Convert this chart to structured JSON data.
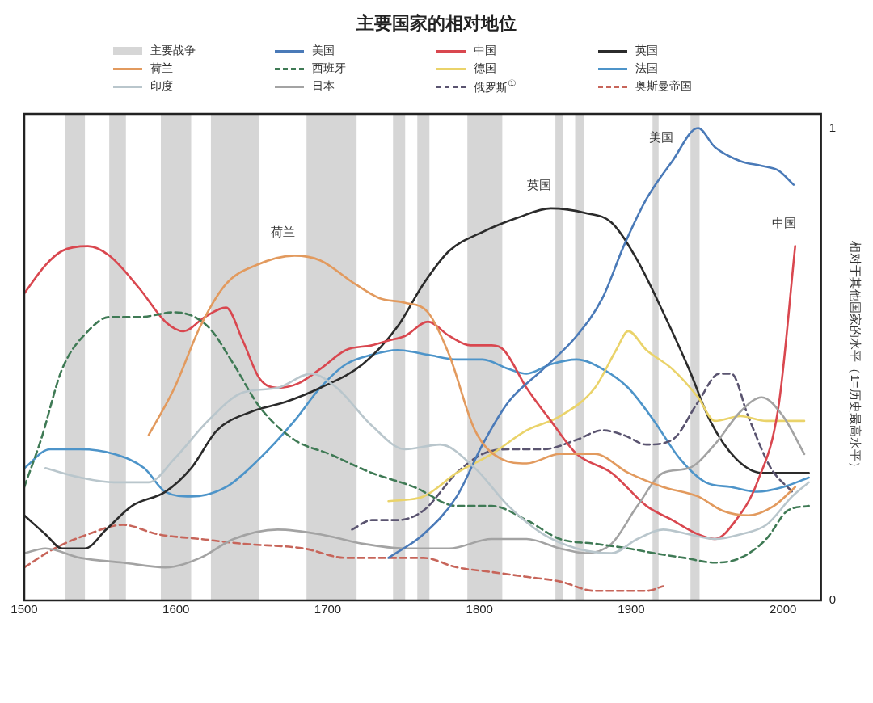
{
  "chart_data": {
    "type": "line",
    "title": "主要国家的相对地位",
    "ylabel": "相对于其他国家的水平（1=历史最高水平）",
    "xlim": [
      1500,
      2025
    ],
    "xticks": [
      1500,
      1600,
      1700,
      1800,
      1900,
      2000
    ],
    "ylim": [
      0,
      1.03
    ],
    "yticks": [
      0,
      1
    ],
    "grid": false,
    "legend": "top",
    "marker": "none",
    "bands": [
      {
        "axis": "x",
        "from": 1527,
        "to": 1540,
        "label": "主要战争",
        "color": "#d6d6d6"
      },
      {
        "axis": "x",
        "from": 1556,
        "to": 1567,
        "color": "#d6d6d6"
      },
      {
        "axis": "x",
        "from": 1590,
        "to": 1610,
        "color": "#d6d6d6"
      },
      {
        "axis": "x",
        "from": 1623,
        "to": 1655,
        "color": "#d6d6d6"
      },
      {
        "axis": "x",
        "from": 1686,
        "to": 1719,
        "color": "#d6d6d6"
      },
      {
        "axis": "x",
        "from": 1743,
        "to": 1751,
        "color": "#d6d6d6"
      },
      {
        "axis": "x",
        "from": 1759,
        "to": 1767,
        "color": "#d6d6d6"
      },
      {
        "axis": "x",
        "from": 1792,
        "to": 1815,
        "color": "#d6d6d6"
      },
      {
        "axis": "x",
        "from": 1850,
        "to": 1855,
        "color": "#d6d6d6"
      },
      {
        "axis": "x",
        "from": 1863,
        "to": 1869,
        "color": "#d6d6d6"
      },
      {
        "axis": "x",
        "from": 1914,
        "to": 1918,
        "color": "#d6d6d6"
      },
      {
        "axis": "x",
        "from": 1939,
        "to": 1945,
        "color": "#d6d6d6"
      }
    ],
    "annotations": [
      {
        "text": "荷兰",
        "x": 1678,
        "y": 0.73
      },
      {
        "text": "英国",
        "x": 1847,
        "y": 0.83
      },
      {
        "text": "美国",
        "x": 1927,
        "y": 0.93
      },
      {
        "text": "中国",
        "x": 2008,
        "y": 0.75
      }
    ],
    "series": [
      {
        "name": "荷兰",
        "color": "#e29a5e",
        "line_style": "solid",
        "x": [
          1582,
          1599,
          1616,
          1633,
          1653,
          1678,
          1695,
          1718,
          1734,
          1751,
          1766,
          1780,
          1797,
          1814,
          1831,
          1853,
          1876,
          1898,
          1921,
          1944,
          1960,
          1977,
          1994,
          2008
        ],
        "values": [
          0.35,
          0.45,
          0.58,
          0.67,
          0.71,
          0.73,
          0.72,
          0.67,
          0.64,
          0.63,
          0.61,
          0.52,
          0.36,
          0.3,
          0.29,
          0.31,
          0.31,
          0.27,
          0.24,
          0.22,
          0.19,
          0.18,
          0.2,
          0.24
        ]
      },
      {
        "name": "印度",
        "color": "#b9c6cc",
        "line_style": "solid",
        "x": [
          1514,
          1537,
          1559,
          1582,
          1599,
          1621,
          1644,
          1667,
          1689,
          1706,
          1729,
          1751,
          1774,
          1797,
          1819,
          1842,
          1864,
          1887,
          1904,
          1921,
          1938,
          1955,
          1972,
          1989,
          2006,
          2017
        ],
        "values": [
          0.28,
          0.26,
          0.25,
          0.25,
          0.3,
          0.38,
          0.44,
          0.45,
          0.48,
          0.45,
          0.37,
          0.32,
          0.33,
          0.28,
          0.2,
          0.14,
          0.11,
          0.1,
          0.13,
          0.15,
          0.14,
          0.13,
          0.14,
          0.16,
          0.22,
          0.25
        ]
      },
      {
        "name": "美国",
        "color": "#4a7ab8",
        "line_style": "solid",
        "x": [
          1740,
          1763,
          1785,
          1802,
          1819,
          1842,
          1864,
          1881,
          1895,
          1910,
          1927,
          1944,
          1955,
          1972,
          1986,
          1997,
          2007
        ],
        "values": [
          0.09,
          0.14,
          0.22,
          0.33,
          0.42,
          0.49,
          0.56,
          0.64,
          0.75,
          0.85,
          0.93,
          1.0,
          0.96,
          0.93,
          0.92,
          0.91,
          0.88
        ]
      },
      {
        "name": "西班牙",
        "color": "#3f7a55",
        "line_style": "dashed",
        "x": [
          1500,
          1511,
          1525,
          1542,
          1556,
          1576,
          1599,
          1621,
          1638,
          1655,
          1678,
          1701,
          1729,
          1757,
          1785,
          1808,
          1831,
          1853,
          1876,
          1898,
          1915,
          1935,
          1955,
          1972,
          1989,
          2003,
          2017
        ],
        "values": [
          0.24,
          0.34,
          0.49,
          0.57,
          0.6,
          0.6,
          0.61,
          0.58,
          0.5,
          0.41,
          0.34,
          0.31,
          0.27,
          0.24,
          0.2,
          0.2,
          0.17,
          0.13,
          0.12,
          0.11,
          0.1,
          0.09,
          0.08,
          0.09,
          0.13,
          0.19,
          0.2
        ]
      },
      {
        "name": "日本",
        "color": "#a3a3a3",
        "line_style": "solid",
        "x": [
          1500,
          1514,
          1537,
          1565,
          1593,
          1616,
          1638,
          1667,
          1695,
          1723,
          1751,
          1780,
          1808,
          1831,
          1853,
          1870,
          1887,
          1904,
          1921,
          1938,
          1955,
          1972,
          1986,
          2000,
          2014
        ],
        "values": [
          0.1,
          0.11,
          0.09,
          0.08,
          0.07,
          0.09,
          0.13,
          0.15,
          0.14,
          0.12,
          0.11,
          0.11,
          0.13,
          0.13,
          0.11,
          0.1,
          0.12,
          0.2,
          0.27,
          0.28,
          0.33,
          0.4,
          0.43,
          0.39,
          0.31
        ]
      },
      {
        "name": "中国",
        "color": "#d9474f",
        "line_style": "solid",
        "x": [
          1500,
          1514,
          1525,
          1542,
          1556,
          1576,
          1593,
          1605,
          1619,
          1633,
          1644,
          1655,
          1667,
          1681,
          1695,
          1712,
          1729,
          1740,
          1751,
          1766,
          1780,
          1794,
          1808,
          1816,
          1831,
          1847,
          1864,
          1887,
          1910,
          1927,
          1944,
          1955,
          1969,
          1983,
          1997,
          2008
        ],
        "values": [
          0.65,
          0.71,
          0.74,
          0.75,
          0.73,
          0.66,
          0.59,
          0.57,
          0.6,
          0.62,
          0.55,
          0.47,
          0.45,
          0.46,
          0.49,
          0.53,
          0.54,
          0.55,
          0.56,
          0.59,
          0.56,
          0.54,
          0.54,
          0.53,
          0.45,
          0.38,
          0.31,
          0.27,
          0.2,
          0.17,
          0.14,
          0.13,
          0.17,
          0.25,
          0.41,
          0.75
        ]
      },
      {
        "name": "德国",
        "color": "#ead36a",
        "line_style": "solid",
        "x": [
          1740,
          1763,
          1785,
          1808,
          1831,
          1853,
          1876,
          1890,
          1898,
          1910,
          1927,
          1944,
          1955,
          1972,
          1989,
          2014
        ],
        "values": [
          0.21,
          0.22,
          0.27,
          0.31,
          0.36,
          0.39,
          0.45,
          0.53,
          0.57,
          0.53,
          0.49,
          0.43,
          0.38,
          0.39,
          0.38,
          0.38
        ]
      },
      {
        "name": "俄罗斯$^{①}$",
        "color": "#5a5470",
        "line_style": "dashed",
        "x": [
          1716,
          1729,
          1746,
          1763,
          1785,
          1802,
          1819,
          1842,
          1864,
          1881,
          1895,
          1910,
          1927,
          1944,
          1958,
          1966,
          1977,
          1992,
          2006
        ],
        "values": [
          0.15,
          0.17,
          0.17,
          0.19,
          0.27,
          0.31,
          0.32,
          0.32,
          0.34,
          0.36,
          0.35,
          0.33,
          0.34,
          0.42,
          0.48,
          0.48,
          0.39,
          0.28,
          0.23
        ]
      },
      {
        "name": "英国",
        "color": "#2b2b2b",
        "line_style": "solid",
        "x": [
          1500,
          1514,
          1525,
          1540,
          1554,
          1571,
          1593,
          1610,
          1627,
          1650,
          1672,
          1695,
          1723,
          1746,
          1763,
          1780,
          1802,
          1825,
          1847,
          1870,
          1887,
          1904,
          1921,
          1938,
          1952,
          1969,
          1986,
          2003,
          2017
        ],
        "values": [
          0.18,
          0.14,
          0.11,
          0.11,
          0.15,
          0.2,
          0.23,
          0.28,
          0.36,
          0.4,
          0.42,
          0.45,
          0.5,
          0.58,
          0.67,
          0.74,
          0.78,
          0.81,
          0.83,
          0.82,
          0.8,
          0.72,
          0.61,
          0.49,
          0.38,
          0.3,
          0.27,
          0.27,
          0.27
        ]
      },
      {
        "name": "法国",
        "color": "#4d94c9",
        "line_style": "solid",
        "x": [
          1500,
          1517,
          1537,
          1559,
          1579,
          1593,
          1610,
          1633,
          1655,
          1678,
          1695,
          1712,
          1729,
          1746,
          1766,
          1785,
          1802,
          1819,
          1831,
          1847,
          1864,
          1881,
          1898,
          1915,
          1932,
          1949,
          1966,
          1983,
          2000,
          2017
        ],
        "values": [
          0.28,
          0.32,
          0.32,
          0.31,
          0.28,
          0.23,
          0.22,
          0.24,
          0.3,
          0.38,
          0.45,
          0.5,
          0.52,
          0.53,
          0.52,
          0.51,
          0.51,
          0.49,
          0.48,
          0.5,
          0.51,
          0.49,
          0.45,
          0.38,
          0.3,
          0.25,
          0.24,
          0.23,
          0.24,
          0.26
        ]
      },
      {
        "name": "奥斯曼帝国",
        "color": "#c7655a",
        "line_style": "dashed",
        "x": [
          1500,
          1520,
          1542,
          1565,
          1588,
          1616,
          1644,
          1684,
          1712,
          1740,
          1763,
          1785,
          1808,
          1831,
          1853,
          1876,
          1893,
          1910,
          1921
        ],
        "values": [
          0.07,
          0.11,
          0.14,
          0.16,
          0.14,
          0.13,
          0.12,
          0.11,
          0.09,
          0.09,
          0.09,
          0.07,
          0.06,
          0.05,
          0.04,
          0.02,
          0.02,
          0.02,
          0.03
        ]
      }
    ]
  }
}
